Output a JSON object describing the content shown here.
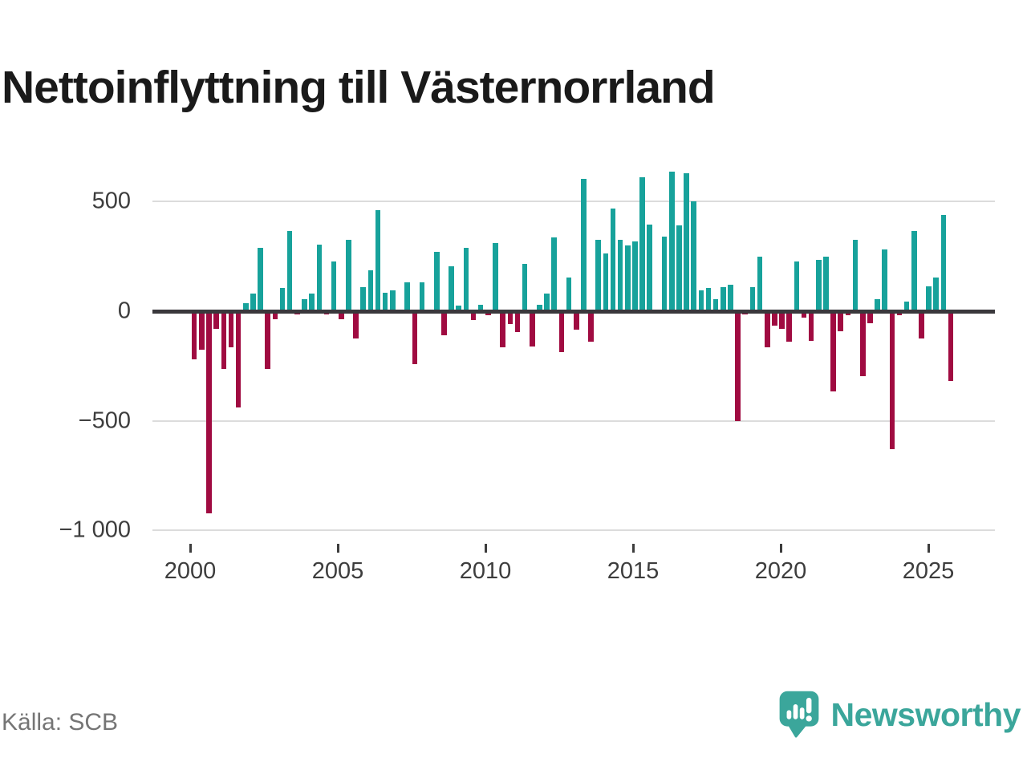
{
  "title": "Nettoinflyttning till Västernorrland",
  "source": "Källa: SCB",
  "brand": {
    "name": "Newsworthy",
    "color": "#3ba69b"
  },
  "colors": {
    "positive": "#17a29b",
    "negative": "#a00b41",
    "zero_line": "#3a383c",
    "gridline": "#dcdcdc",
    "axis_text": "#3d3d3d",
    "source_text": "#757575",
    "title_text": "#1a1a1a"
  },
  "chart_data": {
    "type": "bar",
    "title": "Nettoinflyttning till Västernorrland",
    "x_start_year": 2000,
    "period": "quarterly",
    "x_tick_labels": [
      "2000",
      "2005",
      "2010",
      "2015",
      "2020",
      "2025"
    ],
    "y_ticks": [
      {
        "label": "500",
        "value": 500
      },
      {
        "label": "0",
        "value": 0
      },
      {
        "label": "−500",
        "value": -500
      },
      {
        "label": "−1 000",
        "value": -1000
      }
    ],
    "ylim": [
      -1050,
      700
    ],
    "grid": true,
    "legend": "none",
    "values": [
      -220,
      -175,
      -920,
      -80,
      -265,
      -165,
      -440,
      35,
      80,
      290,
      -265,
      -35,
      105,
      365,
      -15,
      55,
      80,
      305,
      -15,
      225,
      -35,
      325,
      -125,
      110,
      185,
      460,
      85,
      95,
      0,
      130,
      -240,
      130,
      0,
      270,
      -110,
      205,
      25,
      290,
      -40,
      30,
      -20,
      310,
      -165,
      -60,
      -95,
      215,
      -160,
      30,
      80,
      335,
      -185,
      155,
      -85,
      605,
      -140,
      325,
      265,
      470,
      325,
      300,
      320,
      610,
      395,
      0,
      340,
      635,
      390,
      630,
      500,
      95,
      105,
      55,
      110,
      120,
      -500,
      -15,
      110,
      250,
      -165,
      -65,
      -80,
      -140,
      225,
      -30,
      -135,
      235,
      250,
      -365,
      -90,
      -20,
      325,
      -295,
      -55,
      55,
      280,
      -630,
      -20,
      45,
      365,
      -125,
      115,
      155,
      440,
      -320
    ]
  }
}
